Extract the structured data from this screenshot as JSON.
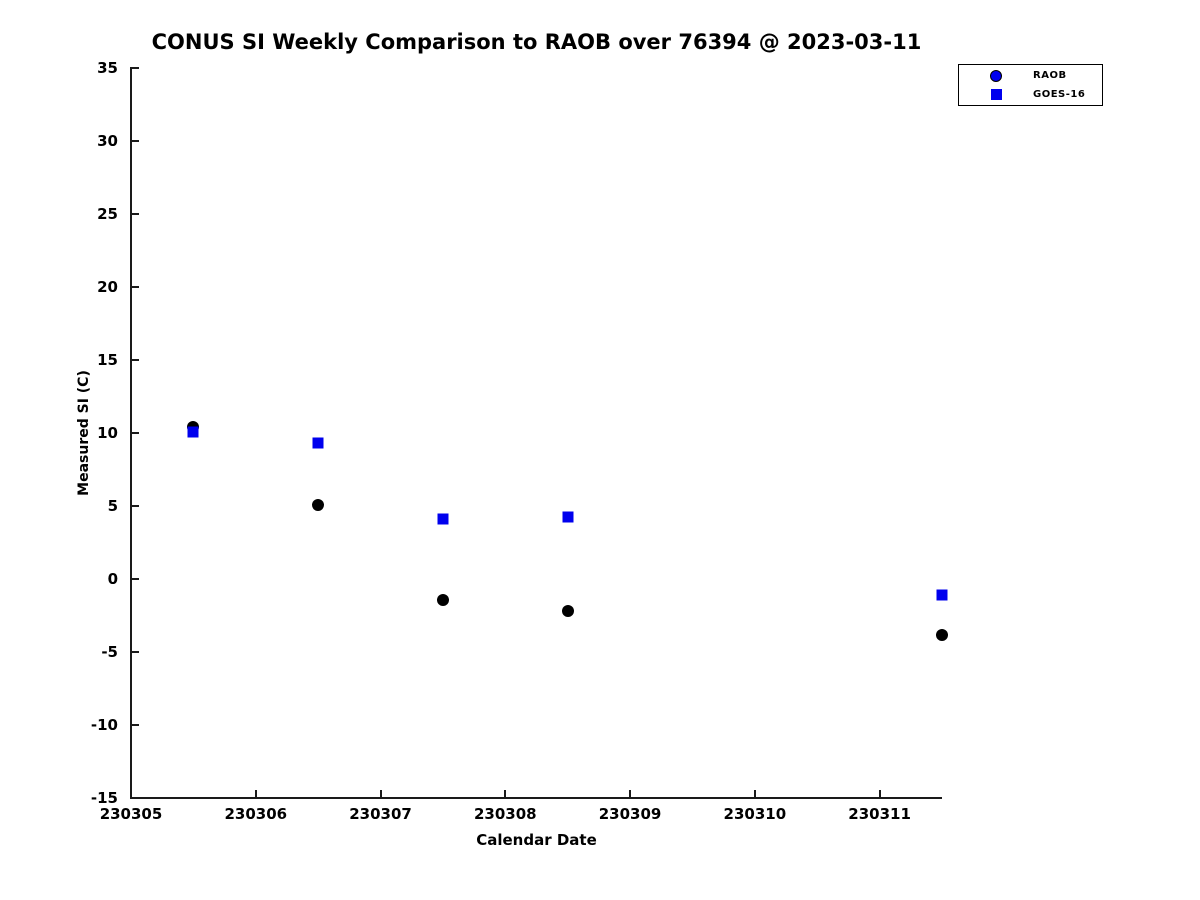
{
  "chart_data": {
    "type": "scatter",
    "title": "CONUS SI Weekly Comparison to RAOB over 76394 @ 2023-03-11",
    "xlabel": "Calendar Date",
    "ylabel": "Measured SI (C)",
    "xlim": [
      230305,
      230311.5
    ],
    "ylim": [
      -15,
      35
    ],
    "grid": false,
    "legend_position": "top-right",
    "xticks": [
      230305,
      230306,
      230307,
      230308,
      230309,
      230310,
      230311
    ],
    "xtick_labels": [
      "230305",
      "230306",
      "230307",
      "230308",
      "230309",
      "230310",
      "230311"
    ],
    "yticks": [
      35,
      30,
      25,
      20,
      15,
      10,
      5,
      0,
      -5,
      -10,
      -15
    ],
    "ytick_labels": [
      "35",
      "30",
      "25",
      "20",
      "15",
      "10",
      "5",
      "0",
      "-5",
      "-10",
      "-15"
    ],
    "series": [
      {
        "name": "RAOB",
        "marker": "circle",
        "marker_color": "#000000",
        "legend_marker_color": "#0000EE",
        "x": [
          230305.5,
          230306.5,
          230307.5,
          230308.5,
          230311.5
        ],
        "y": [
          10.4,
          5.1,
          -1.45,
          -2.2,
          -3.85
        ]
      },
      {
        "name": "GOES-16",
        "marker": "square",
        "marker_color": "#0000EE",
        "legend_marker_color": "#0000EE",
        "x": [
          230305.5,
          230306.5,
          230307.5,
          230308.5,
          230311.5
        ],
        "y": [
          10.1,
          9.3,
          4.1,
          4.25,
          -1.1
        ]
      }
    ]
  },
  "colors": {
    "axis": "#1a1a1a",
    "blue": "#0000EE",
    "black": "#000000",
    "background": "#ffffff"
  }
}
